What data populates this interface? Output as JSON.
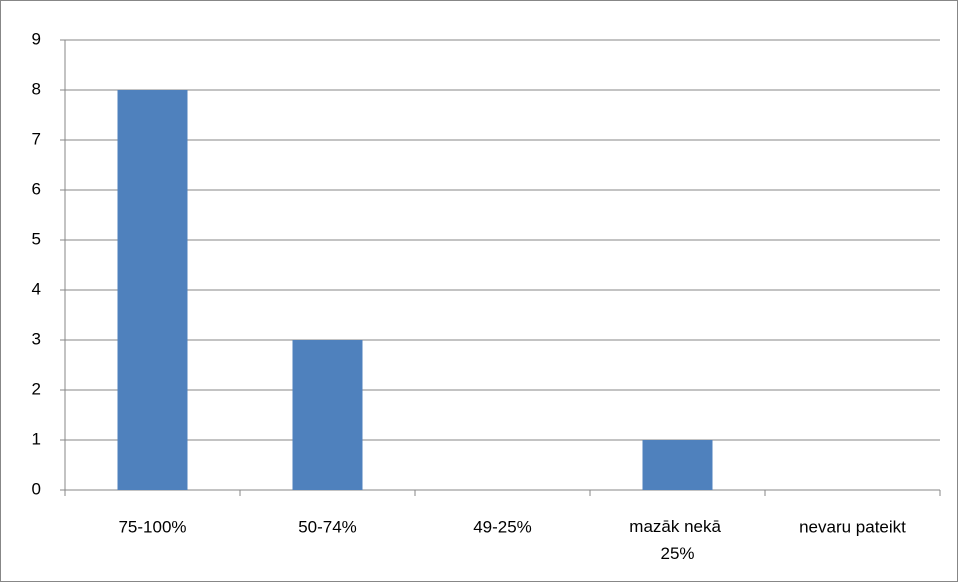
{
  "chart_data": {
    "type": "bar",
    "categories": [
      "75-100%",
      "50-74%",
      "49-25%",
      "mazāk nekā 25%",
      "nevaru pateikt"
    ],
    "values": [
      8,
      3,
      0,
      1,
      0
    ],
    "color": "#4f81bd",
    "ylim": [
      0,
      9
    ],
    "yticks": [
      0,
      1,
      2,
      3,
      4,
      5,
      6,
      7,
      8,
      9
    ],
    "grid": true
  }
}
